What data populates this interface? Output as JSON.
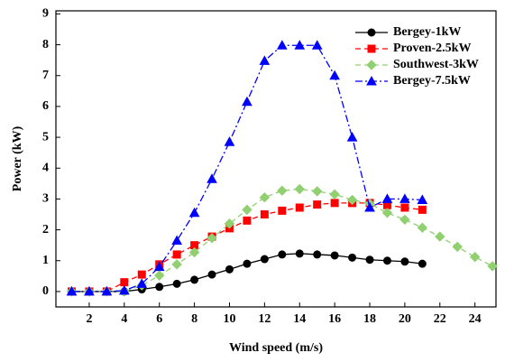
{
  "chart_data": {
    "type": "line",
    "x_label": "Wind speed (m/s)",
    "y_label": "Power (kW)",
    "xlim": [
      0.1,
      25.2
    ],
    "ylim": [
      -0.5,
      9.1
    ],
    "xticks": [
      2,
      4,
      6,
      8,
      10,
      12,
      14,
      16,
      18,
      20,
      22,
      24
    ],
    "yticks": [
      0,
      1,
      2,
      3,
      4,
      5,
      6,
      7,
      8,
      9
    ],
    "legend": "upper right",
    "series": [
      {
        "name": "Bergey-1kW",
        "color": "#000000",
        "linestyle": "solid",
        "marker": "circle",
        "x": [
          1,
          2,
          3,
          4,
          5,
          6,
          7,
          8,
          9,
          10,
          11,
          12,
          13,
          14,
          15,
          16,
          17,
          18,
          19,
          20,
          21
        ],
        "values": [
          0,
          0,
          0,
          0,
          0.07,
          0.15,
          0.25,
          0.38,
          0.55,
          0.72,
          0.9,
          1.05,
          1.2,
          1.23,
          1.2,
          1.17,
          1.1,
          1.03,
          1.0,
          0.97,
          0.9
        ]
      },
      {
        "name": "Proven-2.5kW",
        "color": "#ff0000",
        "linestyle": "dashed",
        "marker": "square",
        "x": [
          1,
          2,
          3,
          4,
          5,
          6,
          7,
          8,
          9,
          10,
          11,
          12,
          13,
          14,
          15,
          16,
          17,
          18,
          19,
          20,
          21
        ],
        "values": [
          0,
          0,
          0,
          0.3,
          0.55,
          0.88,
          1.2,
          1.5,
          1.78,
          2.05,
          2.3,
          2.5,
          2.62,
          2.72,
          2.82,
          2.87,
          2.87,
          2.87,
          2.8,
          2.72,
          2.65
        ]
      },
      {
        "name": "Southwest-3kW",
        "color": "#90d070",
        "linestyle": "dashed",
        "marker": "diamond",
        "x": [
          1,
          2,
          3,
          4,
          5,
          6,
          7,
          8,
          9,
          10,
          11,
          12,
          13,
          14,
          15,
          16,
          17,
          18,
          19,
          20,
          21,
          22,
          23,
          24,
          25
        ],
        "values": [
          0,
          0,
          0,
          0,
          0.2,
          0.52,
          0.88,
          1.27,
          1.73,
          2.2,
          2.65,
          3.05,
          3.27,
          3.32,
          3.25,
          3.15,
          2.97,
          2.85,
          2.55,
          2.33,
          2.07,
          1.78,
          1.45,
          1.12,
          0.82
        ]
      },
      {
        "name": "Bergey-7.5kW",
        "color": "#0000ff",
        "linestyle": "dashdot",
        "marker": "triangle",
        "x": [
          1,
          2,
          3,
          4,
          5,
          6,
          7,
          8,
          9,
          10,
          11,
          12,
          13,
          14,
          15,
          16,
          17,
          18,
          19,
          20,
          21
        ],
        "values": [
          0,
          0,
          0,
          0.03,
          0.25,
          0.8,
          1.65,
          2.55,
          3.65,
          4.85,
          6.15,
          7.48,
          7.98,
          7.98,
          7.98,
          7.0,
          5.0,
          2.72,
          3.0,
          3.0,
          2.97
        ]
      }
    ]
  }
}
